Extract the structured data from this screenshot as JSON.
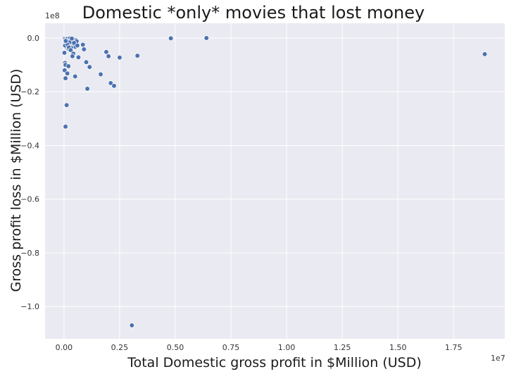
{
  "chart_data": {
    "type": "scatter",
    "title": "Domestic *only* movies that lost money",
    "xlabel": "Total Domestic gross profit in $Million (USD)",
    "ylabel": "Gross profit loss in $Million (USD)",
    "x_offset_label": "1e7",
    "y_offset_label": "1e8",
    "x_multiplier": 10000000,
    "y_multiplier": 100000000,
    "xlim": [
      -850000,
      19800000
    ],
    "ylim": [
      -112000000,
      5500000
    ],
    "x_ticks": [
      0,
      2500000,
      5000000,
      7500000,
      10000000,
      12500000,
      15000000,
      17500000
    ],
    "x_tick_labels": [
      "0.00",
      "0.25",
      "0.50",
      "0.75",
      "1.00",
      "1.25",
      "1.50",
      "1.75"
    ],
    "y_ticks": [
      0,
      -20000000,
      -40000000,
      -60000000,
      -80000000,
      -100000000
    ],
    "y_tick_labels": [
      "0.0",
      "−0.2",
      "−0.4",
      "−0.6",
      "−0.8",
      "−1.0"
    ],
    "grid": true,
    "colors": {
      "background": "#eaeaf2",
      "grid": "#ffffff",
      "marker": "#4c72b0",
      "marker_edge": "#ffffff"
    },
    "points": [
      {
        "x": 30000,
        "y": -200000
      },
      {
        "x": 60000,
        "y": -500000
      },
      {
        "x": 90000,
        "y": -900000
      },
      {
        "x": 120000,
        "y": -1300000
      },
      {
        "x": 150000,
        "y": -300000
      },
      {
        "x": 180000,
        "y": -1800000
      },
      {
        "x": 210000,
        "y": -700000
      },
      {
        "x": 240000,
        "y": -2200000
      },
      {
        "x": 270000,
        "y": -100000
      },
      {
        "x": 300000,
        "y": -1000000
      },
      {
        "x": 330000,
        "y": -2600000
      },
      {
        "x": 360000,
        "y": -400000
      },
      {
        "x": 390000,
        "y": -1500000
      },
      {
        "x": 420000,
        "y": -3000000
      },
      {
        "x": 450000,
        "y": -600000
      },
      {
        "x": 480000,
        "y": -2000000
      },
      {
        "x": 510000,
        "y": -3300000
      },
      {
        "x": 540000,
        "y": -800000
      },
      {
        "x": 570000,
        "y": -1200000
      },
      {
        "x": 100000,
        "y": -3400000
      },
      {
        "x": 200000,
        "y": -4000000
      },
      {
        "x": 50000,
        "y": -2800000
      },
      {
        "x": 250000,
        "y": -1600000
      },
      {
        "x": 350000,
        "y": -200000
      },
      {
        "x": 150000,
        "y": -2400000
      },
      {
        "x": 450000,
        "y": -1800000
      },
      {
        "x": 80000,
        "y": -1100000
      },
      {
        "x": 20000,
        "y": -5500000
      },
      {
        "x": 320000,
        "y": -3600000
      },
      {
        "x": 220000,
        "y": -3500000
      },
      {
        "x": 850000,
        "y": -2500000
      },
      {
        "x": 900000,
        "y": -4200000
      },
      {
        "x": 600000,
        "y": -2800000
      },
      {
        "x": 300000,
        "y": -4500000
      },
      {
        "x": 420000,
        "y": -5800000
      },
      {
        "x": 380000,
        "y": -6800000
      },
      {
        "x": 650000,
        "y": -7200000
      },
      {
        "x": 1000000,
        "y": -9000000
      },
      {
        "x": 1150000,
        "y": -10800000
      },
      {
        "x": 50000,
        "y": -9300000
      },
      {
        "x": 70000,
        "y": -10000000
      },
      {
        "x": 200000,
        "y": -10500000
      },
      {
        "x": 30000,
        "y": -12000000
      },
      {
        "x": 150000,
        "y": -13200000
      },
      {
        "x": 500000,
        "y": -14300000
      },
      {
        "x": 70000,
        "y": -15000000
      },
      {
        "x": 1650000,
        "y": -13500000
      },
      {
        "x": 1900000,
        "y": -5200000
      },
      {
        "x": 2000000,
        "y": -6800000
      },
      {
        "x": 2500000,
        "y": -7300000
      },
      {
        "x": 3300000,
        "y": -6600000
      },
      {
        "x": 2100000,
        "y": -16800000
      },
      {
        "x": 2250000,
        "y": -17800000
      },
      {
        "x": 1050000,
        "y": -18900000
      },
      {
        "x": 120000,
        "y": -25000000
      },
      {
        "x": 70000,
        "y": -33000000
      },
      {
        "x": 3050000,
        "y": -107000000
      },
      {
        "x": 4800000,
        "y": -100000
      },
      {
        "x": 6400000,
        "y": 0
      },
      {
        "x": 18900000,
        "y": -6000000
      }
    ]
  }
}
